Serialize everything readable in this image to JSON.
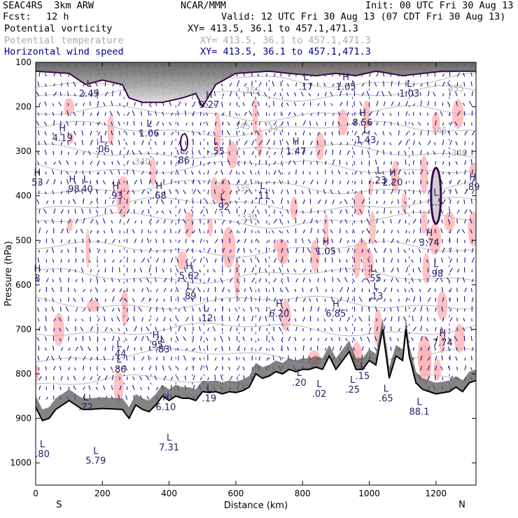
{
  "header": {
    "model": "SEAC4RS  3km ARW",
    "center": "NCAR/MMM",
    "init": "Init: 00 UTC Fri 30 Aug 13",
    "fcst_label": "Fcst:",
    "fcst_value": "12 h",
    "valid": "Valid: 12 UTC Fri 30 Aug 13 (07 CDT Fri 30 Aug 13)"
  },
  "fields": [
    {
      "name": "Potential vorticity",
      "xy": "XY= 413.5, 36.1 to 457.1,471.3",
      "color": "#000000"
    },
    {
      "name": "Potential temperature",
      "xy": "XY= 413.5, 36.1 to 457.1,471.3",
      "color": "#aaaaaa"
    },
    {
      "name": "Horizontal wind speed",
      "xy": "XY= 413.5, 36.1 to 457.1,471.3",
      "color": "#00008b"
    }
  ],
  "colors": {
    "pv_contour": "#3a0a4a",
    "theta_contour": "#b8b8b8",
    "wind_barbs": "#00008b",
    "wind_shading": "#ffb6b6",
    "label_color": "#2a1a6a",
    "terrain_gray": "#5a5a5a"
  },
  "chart_data": {
    "type": "heatmap",
    "xlabel": "Distance (km)",
    "ylabel": "Pressure (hPa)",
    "xlim": [
      0,
      1320
    ],
    "ylim": [
      1050,
      100
    ],
    "x_ticks": [
      0,
      200,
      400,
      600,
      800,
      1000,
      1200
    ],
    "y_ticks": [
      100,
      200,
      300,
      400,
      500,
      600,
      700,
      800,
      900,
      1000
    ],
    "x_end_labels": {
      "left": "S",
      "right": "N"
    },
    "theta_contours": [
      {
        "label": "345",
        "x": 720,
        "p": 255
      },
      {
        "label": "345",
        "x": 620,
        "p": 250
      },
      {
        "label": "345",
        "x": 1210,
        "p": 260
      },
      {
        "label": "340",
        "x": 320,
        "p": 330
      },
      {
        "label": "340",
        "x": 1270,
        "p": 310
      },
      {
        "label": "335",
        "x": 620,
        "p": 390
      },
      {
        "label": "330",
        "x": 640,
        "p": 455
      },
      {
        "label": "355",
        "x": 650,
        "p": 170
      },
      {
        "label": "355",
        "x": 1260,
        "p": 165
      }
    ],
    "extrema": [
      {
        "type": "L",
        "value": "2.49",
        "x": 160,
        "p": 155
      },
      {
        "type": "H",
        "value": "9.27",
        "x": 520,
        "p": 180
      },
      {
        "type": "L",
        "value": ".17",
        "x": 810,
        "p": 140
      },
      {
        "type": "H",
        "value": "1.05",
        "x": 930,
        "p": 140
      },
      {
        "type": "L",
        "value": "1.03",
        "x": 1120,
        "p": 155
      },
      {
        "type": "H",
        "value": "4.19",
        "x": 80,
        "p": 255
      },
      {
        "type": "L",
        "value": ".06",
        "x": 200,
        "p": 280
      },
      {
        "type": "L",
        "value": "1.06",
        "x": 340,
        "p": 245
      },
      {
        "type": "L",
        "value": "-.55",
        "x": 540,
        "p": 285
      },
      {
        "type": "L",
        "value": ".86",
        "x": 440,
        "p": 305
      },
      {
        "type": "H",
        "value": "1.47",
        "x": 780,
        "p": 285
      },
      {
        "type": "H",
        "value": "8.56",
        "x": 980,
        "p": 220
      },
      {
        "type": "L",
        "value": "1.43",
        "x": 990,
        "p": 260
      },
      {
        "type": "H",
        "value": ".98",
        "x": 110,
        "p": 370
      },
      {
        "type": "L",
        "value": ".40",
        "x": 150,
        "p": 370
      },
      {
        "type": "H",
        "value": ".93",
        "x": 240,
        "p": 385
      },
      {
        "type": "H",
        "value": ".68",
        "x": 370,
        "p": 385
      },
      {
        "type": "L",
        "value": ".11",
        "x": 680,
        "p": 385
      },
      {
        "type": "L",
        "value": ".92",
        "x": 560,
        "p": 410
      },
      {
        "type": "L",
        "value": ".23",
        "x": 1030,
        "p": 350
      },
      {
        "type": "H",
        "value": "2.20",
        "x": 1070,
        "p": 355
      },
      {
        "type": "H",
        "value": ".89",
        "x": 1310,
        "p": 365
      },
      {
        "type": "L",
        "value": "1.5",
        "x": 1200,
        "p": 400
      },
      {
        "type": "H",
        "value": "3.74",
        "x": 1180,
        "p": 490
      },
      {
        "type": "H",
        "value": "1.05",
        "x": 870,
        "p": 510
      },
      {
        "type": "L",
        "value": ".98",
        "x": 1200,
        "p": 560
      },
      {
        "type": "H",
        "value": "5.62",
        "x": 460,
        "p": 565
      },
      {
        "type": "L",
        "value": ".89",
        "x": 460,
        "p": 610
      },
      {
        "type": "L",
        "value": ".12",
        "x": 510,
        "p": 660
      },
      {
        "type": "L",
        "value": "-.55",
        "x": 1010,
        "p": 570
      },
      {
        "type": "L",
        "value": ".13",
        "x": 1020,
        "p": 610
      },
      {
        "type": "H",
        "value": "6.20",
        "x": 730,
        "p": 650
      },
      {
        "type": "H",
        "value": "6.85",
        "x": 900,
        "p": 650
      },
      {
        "type": "H",
        "value": "7.74",
        "x": 1220,
        "p": 715
      },
      {
        "type": "H",
        "value": ".95",
        "x": 360,
        "p": 720
      },
      {
        "type": "L",
        "value": ".83",
        "x": 380,
        "p": 730
      },
      {
        "type": "L",
        "value": ".44",
        "x": 250,
        "p": 740
      },
      {
        "type": "L",
        "value": ".86",
        "x": 250,
        "p": 775
      },
      {
        "type": "L",
        "value": ".20",
        "x": 790,
        "p": 805
      },
      {
        "type": "L",
        "value": ".72",
        "x": 150,
        "p": 860
      },
      {
        "type": "H",
        "value": "6.10",
        "x": 390,
        "p": 860
      },
      {
        "type": "L",
        "value": ".19",
        "x": 520,
        "p": 840
      },
      {
        "type": "L",
        "value": ".02",
        "x": 850,
        "p": 830
      },
      {
        "type": "L",
        "value": ".25",
        "x": 950,
        "p": 820
      },
      {
        "type": "L",
        "value": ".15",
        "x": 980,
        "p": 790
      },
      {
        "type": "L",
        "value": ".65",
        "x": 1050,
        "p": 840
      },
      {
        "type": "L",
        "value": "88.1",
        "x": 1150,
        "p": 870
      },
      {
        "type": "L",
        "value": "5.79",
        "x": 180,
        "p": 980
      },
      {
        "type": "L",
        "value": ".80",
        "x": 20,
        "p": 965
      },
      {
        "type": "L",
        "value": "7.31",
        "x": 400,
        "p": 950
      },
      {
        "type": "H",
        "value": "53",
        "x": 5,
        "p": 355
      },
      {
        "type": "H",
        "value": "8",
        "x": 5,
        "p": 570
      }
    ]
  }
}
